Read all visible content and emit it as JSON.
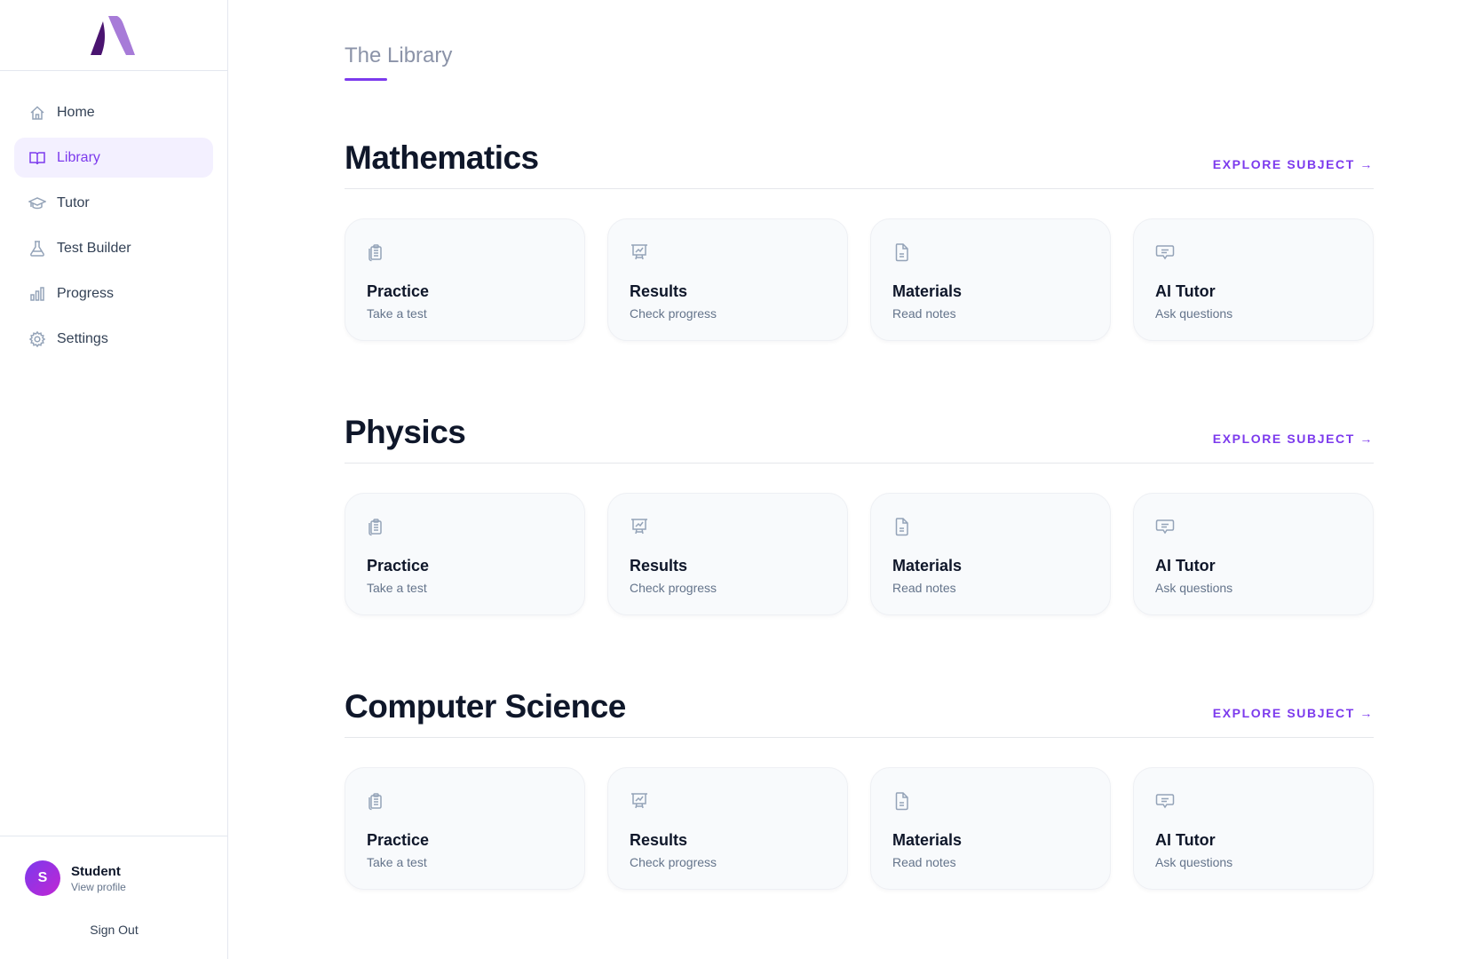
{
  "sidebar": {
    "items": [
      {
        "label": "Home",
        "icon": "home-icon"
      },
      {
        "label": "Library",
        "icon": "book-icon",
        "active": true
      },
      {
        "label": "Tutor",
        "icon": "graduation-cap-icon"
      },
      {
        "label": "Test Builder",
        "icon": "flask-icon"
      },
      {
        "label": "Progress",
        "icon": "bar-chart-icon"
      },
      {
        "label": "Settings",
        "icon": "gear-icon"
      }
    ],
    "profile": {
      "initial": "S",
      "name": "Student",
      "link": "View profile"
    },
    "sign_out": "Sign Out"
  },
  "main": {
    "title": "The Library",
    "sections": [
      {
        "title": "Mathematics",
        "explore": "EXPLORE SUBJECT →"
      },
      {
        "title": "Physics",
        "explore": "EXPLORE SUBJECT →"
      },
      {
        "title": "Computer Science",
        "explore": "EXPLORE SUBJECT →"
      }
    ],
    "cards": [
      {
        "title": "Practice",
        "subtitle": "Take a test",
        "icon": "clipboard-icon"
      },
      {
        "title": "Results",
        "subtitle": "Check progress",
        "icon": "presentation-chart-icon"
      },
      {
        "title": "Materials",
        "subtitle": "Read notes",
        "icon": "document-icon"
      },
      {
        "title": "AI Tutor",
        "subtitle": "Ask questions",
        "icon": "chat-icon"
      }
    ]
  },
  "colors": {
    "accent": "#7c3aed",
    "logo_dark": "#4a1470",
    "logo_light": "#a77bd8"
  }
}
